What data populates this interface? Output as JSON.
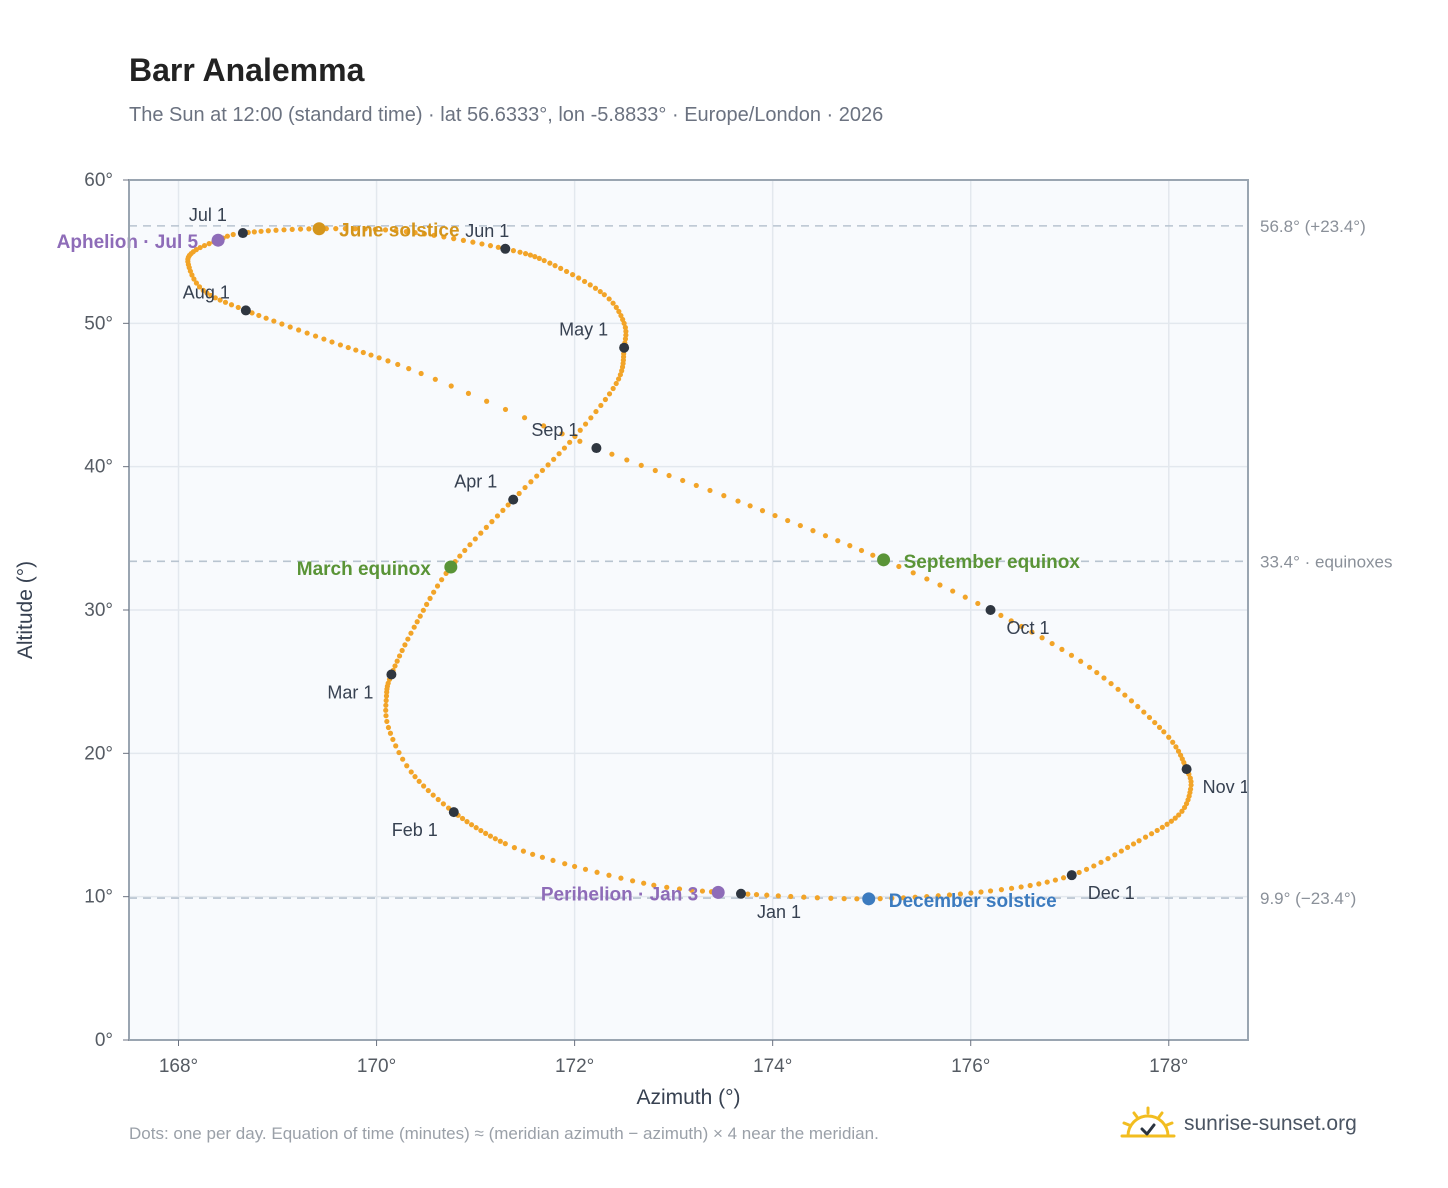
{
  "header": {
    "title": "Barr Analemma",
    "subtitle": "The Sun at 12:00 (standard time) · lat 56.6333°, lon -5.8833° · Europe/London · 2026"
  },
  "footer": {
    "note": "Dots: one per day. Equation of time (minutes) ≈ (meridian azimuth − azimuth) × 4 near the meridian.",
    "brand": "sunrise-sunset.org"
  },
  "colors": {
    "curve": "#f2a428",
    "month_dot": "#2f3640",
    "solstice_june": "#d4951c",
    "equinox": "#5a9437",
    "solstice_december": "#3c7bbf",
    "apsis": "#8e6cb8",
    "plot_bg": "#f8fafd",
    "frame": "#9aa5b1",
    "grid": "#e3e8ee",
    "ref_line": "#b8c4d0"
  },
  "chart_data": {
    "type": "scatter",
    "title": "Barr Analemma",
    "xlabel": "Azimuth (°)",
    "ylabel": "Altitude (°)",
    "xlim": [
      167.5,
      178.8
    ],
    "ylim": [
      0,
      60
    ],
    "grid": true,
    "xticks": [
      168,
      170,
      172,
      174,
      176,
      178
    ],
    "xtick_labels": [
      "168°",
      "170°",
      "172°",
      "174°",
      "176°",
      "178°"
    ],
    "yticks": [
      0,
      10,
      20,
      30,
      40,
      50,
      60
    ],
    "ytick_labels": [
      "0°",
      "10°",
      "20°",
      "30°",
      "40°",
      "50°",
      "60°"
    ],
    "reference_lines": [
      {
        "y": 56.8,
        "label": "56.8° (+23.4°)"
      },
      {
        "y": 33.4,
        "label": "33.4° · equinoxes"
      },
      {
        "y": 9.9,
        "label": "9.9° (−23.4°)"
      }
    ],
    "curve_keypoints": [
      {
        "day": 0,
        "x": 173.45,
        "y": 10.3
      },
      {
        "day": 6,
        "x": 172.8,
        "y": 10.8
      },
      {
        "day": 14,
        "x": 171.9,
        "y": 12.3
      },
      {
        "day": 20,
        "x": 171.3,
        "y": 13.7
      },
      {
        "day": 31,
        "x": 170.78,
        "y": 15.9
      },
      {
        "day": 40,
        "x": 170.35,
        "y": 18.7
      },
      {
        "day": 47,
        "x": 170.12,
        "y": 21.8
      },
      {
        "day": 53,
        "x": 170.1,
        "y": 24.0
      },
      {
        "day": 59,
        "x": 170.15,
        "y": 25.5
      },
      {
        "day": 68,
        "x": 170.38,
        "y": 28.8
      },
      {
        "day": 78,
        "x": 170.75,
        "y": 33.0
      },
      {
        "day": 90,
        "x": 171.38,
        "y": 37.7
      },
      {
        "day": 100,
        "x": 171.95,
        "y": 41.7
      },
      {
        "day": 110,
        "x": 172.42,
        "y": 45.8
      },
      {
        "day": 120,
        "x": 172.5,
        "y": 48.3
      },
      {
        "day": 126,
        "x": 172.5,
        "y": 50.0
      },
      {
        "day": 133,
        "x": 172.3,
        "y": 52.0
      },
      {
        "day": 143,
        "x": 171.75,
        "y": 54.2
      },
      {
        "day": 151,
        "x": 171.3,
        "y": 55.2
      },
      {
        "day": 162,
        "x": 170.3,
        "y": 56.4
      },
      {
        "day": 171,
        "x": 169.4,
        "y": 56.6
      },
      {
        "day": 181,
        "x": 168.65,
        "y": 56.3
      },
      {
        "day": 185,
        "x": 168.4,
        "y": 55.8
      },
      {
        "day": 191,
        "x": 168.15,
        "y": 55.0
      },
      {
        "day": 197,
        "x": 168.1,
        "y": 54.1
      },
      {
        "day": 204,
        "x": 168.25,
        "y": 52.3
      },
      {
        "day": 212,
        "x": 168.68,
        "y": 50.9
      },
      {
        "day": 223,
        "x": 169.55,
        "y": 48.7
      },
      {
        "day": 233,
        "x": 170.45,
        "y": 46.5
      },
      {
        "day": 243,
        "x": 172.22,
        "y": 41.3
      },
      {
        "day": 253,
        "x": 173.65,
        "y": 37.6
      },
      {
        "day": 265,
        "x": 175.12,
        "y": 33.5
      },
      {
        "day": 273,
        "x": 176.2,
        "y": 30.0
      },
      {
        "day": 283,
        "x": 177.2,
        "y": 26.0
      },
      {
        "day": 295,
        "x": 177.95,
        "y": 21.5
      },
      {
        "day": 304,
        "x": 178.18,
        "y": 18.9
      },
      {
        "day": 309,
        "x": 178.22,
        "y": 17.5
      },
      {
        "day": 316,
        "x": 178.1,
        "y": 15.7
      },
      {
        "day": 324,
        "x": 177.7,
        "y": 13.9
      },
      {
        "day": 334,
        "x": 177.02,
        "y": 11.5
      },
      {
        "day": 343,
        "x": 176.2,
        "y": 10.4
      },
      {
        "day": 354,
        "x": 174.97,
        "y": 9.85
      },
      {
        "day": 365,
        "x": 173.68,
        "y": 10.2
      }
    ],
    "month_markers": [
      {
        "label": "Jan 1",
        "x": 173.68,
        "y": 10.2
      },
      {
        "label": "Feb 1",
        "x": 170.78,
        "y": 15.9
      },
      {
        "label": "Mar 1",
        "x": 170.15,
        "y": 25.5
      },
      {
        "label": "Apr 1",
        "x": 171.38,
        "y": 37.7
      },
      {
        "label": "May 1",
        "x": 172.5,
        "y": 48.3
      },
      {
        "label": "Jun 1",
        "x": 171.3,
        "y": 55.2
      },
      {
        "label": "Jul 1",
        "x": 168.65,
        "y": 56.3
      },
      {
        "label": "Aug 1",
        "x": 168.68,
        "y": 50.9
      },
      {
        "label": "Sep 1",
        "x": 172.22,
        "y": 41.3
      },
      {
        "label": "Oct 1",
        "x": 176.2,
        "y": 30.0
      },
      {
        "label": "Nov 1",
        "x": 178.18,
        "y": 18.9
      },
      {
        "label": "Dec 1",
        "x": 177.02,
        "y": 11.5
      }
    ],
    "events": [
      {
        "label": "June solstice",
        "x": 169.42,
        "y": 56.6,
        "kind": "solstice_june"
      },
      {
        "label": "March equinox",
        "x": 170.75,
        "y": 33.0,
        "kind": "equinox"
      },
      {
        "label": "September equinox",
        "x": 175.12,
        "y": 33.5,
        "kind": "equinox"
      },
      {
        "label": "December solstice",
        "x": 174.97,
        "y": 9.85,
        "kind": "solstice_december"
      },
      {
        "label": "Aphelion · Jul 5",
        "x": 168.4,
        "y": 55.8,
        "kind": "apsis"
      },
      {
        "label": "Perihelion · Jan 3",
        "x": 173.45,
        "y": 10.3,
        "kind": "apsis"
      }
    ]
  }
}
